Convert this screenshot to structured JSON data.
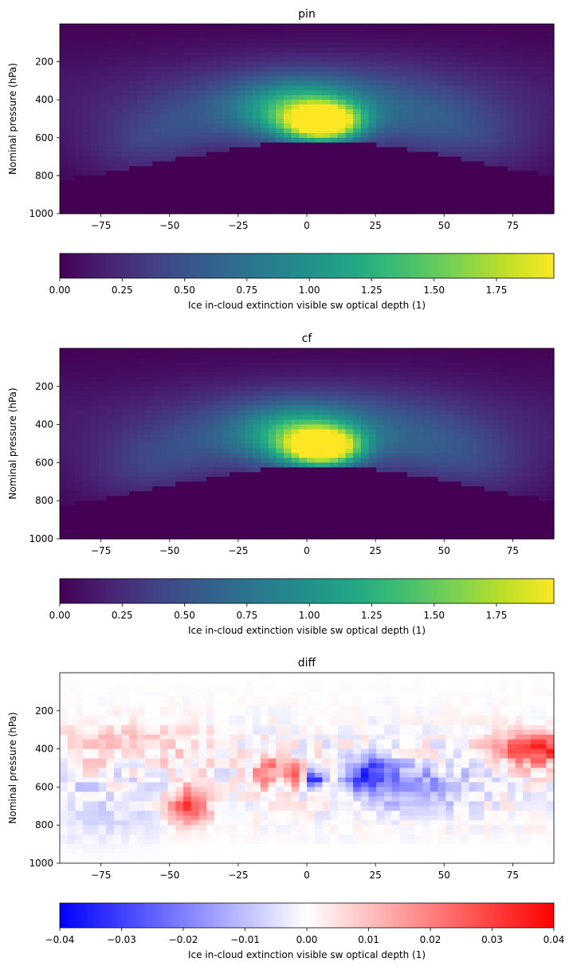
{
  "chart_data": [
    {
      "type": "heatmap",
      "title": "pin",
      "xlabel": "",
      "ylabel": "Nominal pressure (hPa)",
      "xlim": [
        -90,
        90
      ],
      "ylim": [
        1000,
        0
      ],
      "xticks": [
        -75,
        -50,
        -25,
        0,
        25,
        50,
        75
      ],
      "yticks": [
        200,
        400,
        600,
        800,
        1000
      ],
      "colormap": "viridis",
      "field": "pin",
      "colorbar": {
        "label": "Ice in-cloud extinction visible sw optical depth (1)",
        "range": [
          0,
          1.98
        ],
        "ticks": [
          0.0,
          0.25,
          0.5,
          0.75,
          1.0,
          1.25,
          1.5,
          1.75
        ],
        "tick_labels": [
          "0.00",
          "0.25",
          "0.50",
          "0.75",
          "1.00",
          "1.25",
          "1.50",
          "1.75"
        ]
      }
    },
    {
      "type": "heatmap",
      "title": "cf",
      "xlabel": "",
      "ylabel": "Nominal pressure (hPa)",
      "xlim": [
        -90,
        90
      ],
      "ylim": [
        1000,
        0
      ],
      "xticks": [
        -75,
        -50,
        -25,
        0,
        25,
        50,
        75
      ],
      "yticks": [
        200,
        400,
        600,
        800,
        1000
      ],
      "colormap": "viridis",
      "field": "cf",
      "colorbar": {
        "label": "Ice in-cloud extinction visible sw optical depth (1)",
        "range": [
          0,
          1.98
        ],
        "ticks": [
          0.0,
          0.25,
          0.5,
          0.75,
          1.0,
          1.25,
          1.5,
          1.75
        ],
        "tick_labels": [
          "0.00",
          "0.25",
          "0.50",
          "0.75",
          "1.00",
          "1.25",
          "1.50",
          "1.75"
        ]
      }
    },
    {
      "type": "heatmap",
      "title": "diff",
      "xlabel": "",
      "ylabel": "Nominal pressure (hPa)",
      "xlim": [
        -90,
        90
      ],
      "ylim": [
        1000,
        0
      ],
      "xticks": [
        -75,
        -50,
        -25,
        0,
        25,
        50,
        75
      ],
      "yticks": [
        200,
        400,
        600,
        800,
        1000
      ],
      "colormap": "bwr",
      "field": "diff",
      "colorbar": {
        "label": "Ice in-cloud extinction visible sw optical depth (1)",
        "range": [
          -0.04,
          0.04
        ],
        "ticks": [
          -0.04,
          -0.03,
          -0.02,
          -0.01,
          0.0,
          0.01,
          0.02,
          0.03,
          0.04
        ],
        "tick_labels": [
          "−0.04",
          "−0.03",
          "−0.02",
          "−0.01",
          "0.00",
          "0.01",
          "0.02",
          "0.03",
          "0.04"
        ]
      }
    }
  ]
}
